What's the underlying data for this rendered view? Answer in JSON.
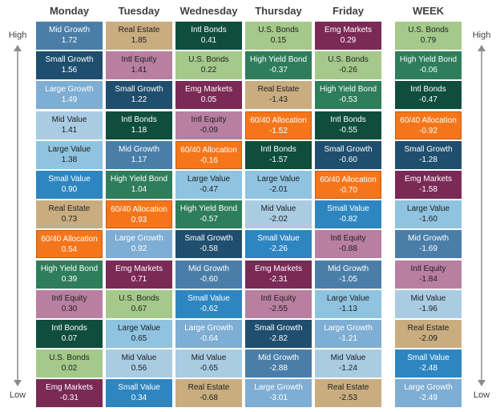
{
  "chart_data": {
    "type": "table",
    "columns": [
      "Monday",
      "Tuesday",
      "Wednesday",
      "Thursday",
      "Friday",
      "WEEK"
    ],
    "rank_labels": {
      "top": "High",
      "bottom": "Low"
    },
    "ranked_cells": [
      [
        {
          "name": "Mid Growth",
          "value": "1.72"
        },
        {
          "name": "Small Growth",
          "value": "1.56"
        },
        {
          "name": "Large Growth",
          "value": "1.49"
        },
        {
          "name": "Mid Value",
          "value": "1.41"
        },
        {
          "name": "Large Value",
          "value": "1.38"
        },
        {
          "name": "Small Value",
          "value": "0.90"
        },
        {
          "name": "Real Estate",
          "value": "0.73"
        },
        {
          "name": "60/40 Allocation",
          "value": "0.54"
        },
        {
          "name": "High Yield Bond",
          "value": "0.39"
        },
        {
          "name": "Intl Equity",
          "value": "0.30"
        },
        {
          "name": "Intl Bonds",
          "value": "0.07"
        },
        {
          "name": "U.S. Bonds",
          "value": "0.02"
        },
        {
          "name": "Emg Markets",
          "value": "-0.31"
        }
      ],
      [
        {
          "name": "Real Estate",
          "value": "1.85"
        },
        {
          "name": "Intl Equity",
          "value": "1.41"
        },
        {
          "name": "Small Growth",
          "value": "1.22"
        },
        {
          "name": "Intl Bonds",
          "value": "1.18"
        },
        {
          "name": "Mid Growth",
          "value": "1.17"
        },
        {
          "name": "High Yield Bond",
          "value": "1.04"
        },
        {
          "name": "60/40 Allocation",
          "value": "0.93"
        },
        {
          "name": "Large Growth",
          "value": "0.92"
        },
        {
          "name": "Emg Markets",
          "value": "0.71"
        },
        {
          "name": "U.S. Bonds",
          "value": "0.67"
        },
        {
          "name": "Large Value",
          "value": "0.65"
        },
        {
          "name": "Mid Value",
          "value": "0.56"
        },
        {
          "name": "Small Value",
          "value": "0.34"
        }
      ],
      [
        {
          "name": "Intl Bonds",
          "value": "0.41"
        },
        {
          "name": "U.S. Bonds",
          "value": "0.22"
        },
        {
          "name": "Emg Markets",
          "value": "0.05"
        },
        {
          "name": "Intl Equity",
          "value": "-0.09"
        },
        {
          "name": "60/40 Allocation",
          "value": "-0.16"
        },
        {
          "name": "Large Value",
          "value": "-0.47"
        },
        {
          "name": "High Yield Bond",
          "value": "-0.57"
        },
        {
          "name": "Small Growth",
          "value": "-0.58"
        },
        {
          "name": "Mid Growth",
          "value": "-0.60"
        },
        {
          "name": "Small Value",
          "value": "-0.62"
        },
        {
          "name": "Large Growth",
          "value": "-0.64"
        },
        {
          "name": "Mid Value",
          "value": "-0.65"
        },
        {
          "name": "Real Estate",
          "value": "-0.68"
        }
      ],
      [
        {
          "name": "U.S. Bonds",
          "value": "0.15"
        },
        {
          "name": "High Yield Bond",
          "value": "-0.37"
        },
        {
          "name": "Real Estate",
          "value": "-1.43"
        },
        {
          "name": "60/40 Allocation",
          "value": "-1.52"
        },
        {
          "name": "Intl Bonds",
          "value": "-1.57"
        },
        {
          "name": "Large Value",
          "value": "-2.01"
        },
        {
          "name": "Mid Value",
          "value": "-2.02"
        },
        {
          "name": "Small Value",
          "value": "-2.26"
        },
        {
          "name": "Emg Markets",
          "value": "-2.31"
        },
        {
          "name": "Intl Equity",
          "value": "-2.55"
        },
        {
          "name": "Small Growth",
          "value": "-2.82"
        },
        {
          "name": "Mid Growth",
          "value": "-2.88"
        },
        {
          "name": "Large Growth",
          "value": "-3.01"
        }
      ],
      [
        {
          "name": "Emg Markets",
          "value": "0.29"
        },
        {
          "name": "U.S. Bonds",
          "value": "-0.26"
        },
        {
          "name": "High Yield Bond",
          "value": "-0.53"
        },
        {
          "name": "Intl Bonds",
          "value": "-0.55"
        },
        {
          "name": "Small Growth",
          "value": "-0.60"
        },
        {
          "name": "60/40 Allocation",
          "value": "-0.70"
        },
        {
          "name": "Small Value",
          "value": "-0.82"
        },
        {
          "name": "Intl Equity",
          "value": "-0.88"
        },
        {
          "name": "Mid Growth",
          "value": "-1.05"
        },
        {
          "name": "Large Value",
          "value": "-1.13"
        },
        {
          "name": "Large Growth",
          "value": "-1.21"
        },
        {
          "name": "Mid Value",
          "value": "-1.24"
        },
        {
          "name": "Real Estate",
          "value": "-2.53"
        }
      ],
      [
        {
          "name": "U.S. Bonds",
          "value": "0.79"
        },
        {
          "name": "High Yield Bond",
          "value": "-0.06"
        },
        {
          "name": "Intl Bonds",
          "value": "-0.47"
        },
        {
          "name": "60/40 Allocation",
          "value": "-0.92"
        },
        {
          "name": "Small Growth",
          "value": "-1.28"
        },
        {
          "name": "Emg Markets",
          "value": "-1.58"
        },
        {
          "name": "Large Value",
          "value": "-1.60"
        },
        {
          "name": "Mid Growth",
          "value": "-1.69"
        },
        {
          "name": "Intl Equity",
          "value": "-1.84"
        },
        {
          "name": "Mid Value",
          "value": "-1.96"
        },
        {
          "name": "Real Estate",
          "value": "-2.09"
        },
        {
          "name": "Small Value",
          "value": "-2.48"
        },
        {
          "name": "Large Growth",
          "value": "-2.49"
        }
      ]
    ],
    "asset_colors": {
      "Mid Growth": {
        "bg": "#4a7ea8",
        "fg": "#ffffff"
      },
      "Small Growth": {
        "bg": "#1f4e6e",
        "fg": "#ffffff"
      },
      "Large Growth": {
        "bg": "#7eaed4",
        "fg": "#ffffff"
      },
      "Mid Value": {
        "bg": "#a9cce3",
        "fg": "#1f1f1f"
      },
      "Large Value": {
        "bg": "#8fc3e0",
        "fg": "#1f1f1f"
      },
      "Small Value": {
        "bg": "#2e86c1",
        "fg": "#ffffff"
      },
      "Real Estate": {
        "bg": "#c9ad80",
        "fg": "#1f1f1f"
      },
      "60/40 Allocation": {
        "bg": "#f5761a",
        "fg": "#ffffff"
      },
      "High Yield Bond": {
        "bg": "#2e7d5b",
        "fg": "#ffffff"
      },
      "Intl Equity": {
        "bg": "#b87fa0",
        "fg": "#1f1f1f"
      },
      "Intl Bonds": {
        "bg": "#0f4d3c",
        "fg": "#ffffff"
      },
      "U.S. Bonds": {
        "bg": "#a4c98a",
        "fg": "#1f1f1f"
      },
      "Emg Markets": {
        "bg": "#7a2a55",
        "fg": "#ffffff"
      }
    }
  }
}
